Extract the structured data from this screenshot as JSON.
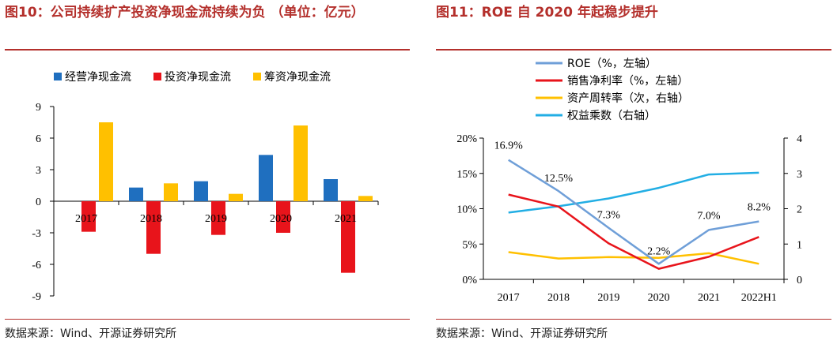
{
  "left": {
    "title": "图10：公司持续扩产投资净现金流持续为负 （单位：亿元）",
    "source": "数据来源：Wind、开源证券研究所"
  },
  "right": {
    "title": "图11：ROE 自 2020 年起稳步提升",
    "source": "数据来源：Wind、开源证券研究所"
  },
  "colors": {
    "accent": "#b4302c"
  },
  "chart_data": [
    {
      "type": "bar",
      "categories": [
        "2017",
        "2018",
        "2019",
        "2020",
        "2021"
      ],
      "series": [
        {
          "name": "经营净现金流",
          "color": "#1f6fbf",
          "values": [
            0.0,
            1.3,
            1.9,
            4.4,
            2.1
          ]
        },
        {
          "name": "投资净现金流",
          "color": "#e8141b",
          "values": [
            -2.9,
            -5.0,
            -3.2,
            -3.0,
            -6.8
          ]
        },
        {
          "name": "筹资净现金流",
          "color": "#ffc000",
          "values": [
            7.5,
            1.7,
            0.7,
            7.2,
            0.5
          ]
        }
      ],
      "yticks": [
        "9",
        "6",
        "3",
        "0",
        "-3",
        "-6",
        "-9"
      ],
      "ylim": [
        -9,
        9
      ],
      "legend_position": "top"
    },
    {
      "type": "line",
      "categories": [
        "2017",
        "2018",
        "2019",
        "2020",
        "2021",
        "2022H1"
      ],
      "series": [
        {
          "name": "ROE（%，左轴）",
          "color": "#6f9fd8",
          "axis": "left",
          "values": [
            16.9,
            12.5,
            7.3,
            2.2,
            7.0,
            8.2
          ],
          "labels": [
            "16.9%",
            "12.5%",
            "7.3%",
            "2.2%",
            "7.0%",
            "8.2%"
          ]
        },
        {
          "name": "销售净利率（%，左轴）",
          "color": "#e8141b",
          "axis": "left",
          "values": [
            12.0,
            10.3,
            5.1,
            1.5,
            3.2,
            6.0
          ]
        },
        {
          "name": "资产周转率（次，右轴）",
          "color": "#ffc000",
          "axis": "right",
          "values": [
            0.77,
            0.59,
            0.63,
            0.61,
            0.74,
            0.44
          ]
        },
        {
          "name": "权益乘数（右轴）",
          "color": "#22aee4",
          "axis": "right",
          "values": [
            1.89,
            2.07,
            2.29,
            2.59,
            2.97,
            3.02
          ]
        }
      ],
      "y_left_ticks": [
        "20%",
        "15%",
        "10%",
        "5%",
        "0%"
      ],
      "y_left_lim": [
        0,
        20
      ],
      "y_right_ticks": [
        "4",
        "3",
        "2",
        "1",
        "0"
      ],
      "y_right_lim": [
        0,
        4
      ],
      "legend_position": "top"
    }
  ]
}
